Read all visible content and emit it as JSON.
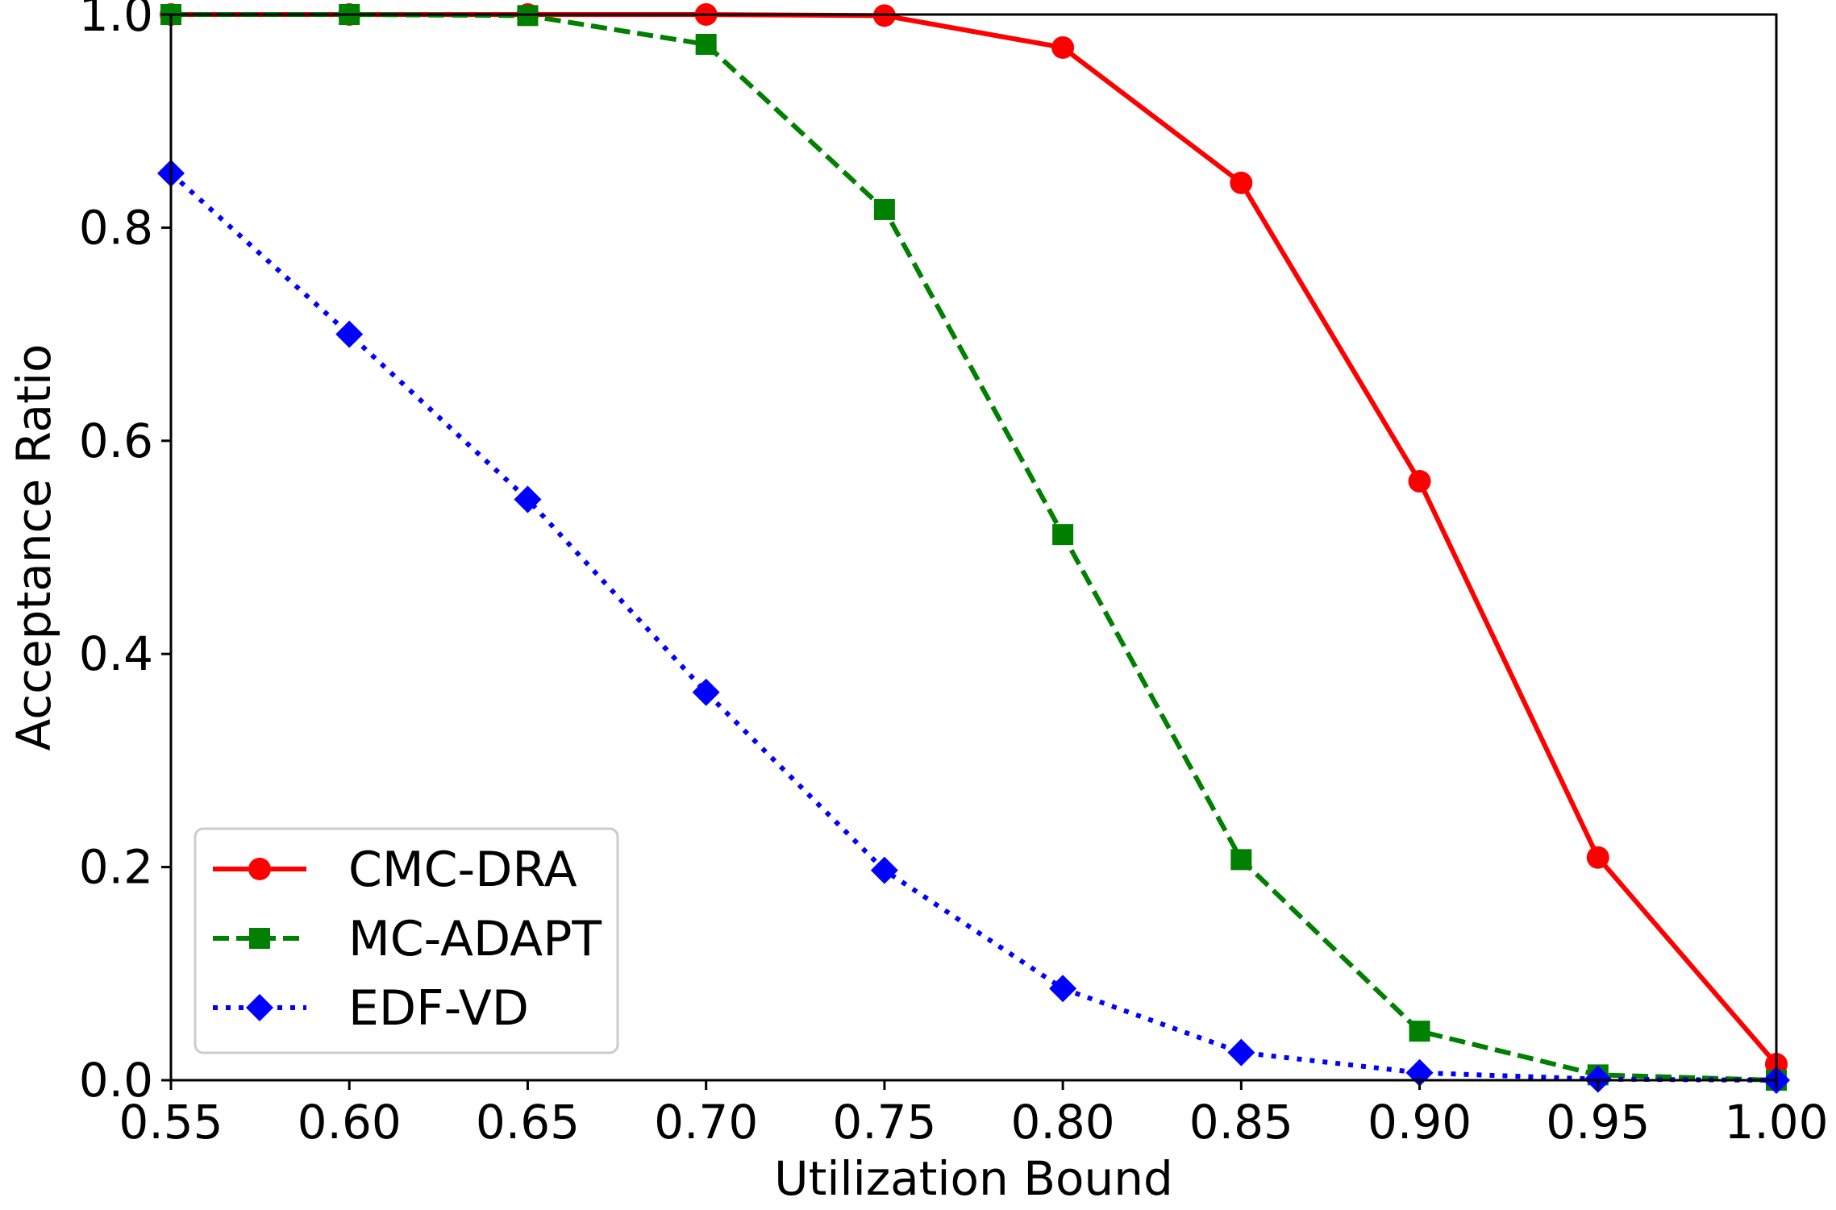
{
  "chart_data": {
    "type": "line",
    "title": "",
    "xlabel": "Utilization Bound",
    "ylabel": "Acceptance Ratio",
    "xlim": [
      0.55,
      1.0
    ],
    "ylim": [
      0.0,
      1.0
    ],
    "grid": false,
    "legend_position": "lower-left",
    "x": [
      0.55,
      0.6,
      0.65,
      0.7,
      0.75,
      0.8,
      0.85,
      0.9,
      0.95,
      1.0
    ],
    "x_tick_labels": [
      "0.55",
      "0.60",
      "0.65",
      "0.70",
      "0.75",
      "0.80",
      "0.85",
      "0.90",
      "0.95",
      "1.00"
    ],
    "y_ticks": [
      0.0,
      0.2,
      0.4,
      0.6,
      0.8,
      1.0
    ],
    "y_tick_labels": [
      "0.0",
      "0.2",
      "0.4",
      "0.6",
      "0.8",
      "1.0"
    ],
    "series": [
      {
        "name": "CMC-DRA",
        "color": "#ff0000",
        "line_style": "solid",
        "marker": "circle",
        "values": [
          1.0,
          1.0,
          1.0,
          1.0,
          0.999,
          0.969,
          0.842,
          0.562,
          0.209,
          0.015
        ]
      },
      {
        "name": "MC-ADAPT",
        "color": "#008000",
        "line_style": "dashed",
        "marker": "square",
        "values": [
          1.0,
          1.0,
          0.999,
          0.972,
          0.817,
          0.512,
          0.207,
          0.046,
          0.005,
          0.0
        ]
      },
      {
        "name": "EDF-VD",
        "color": "#0000ff",
        "line_style": "dotted",
        "marker": "diamond",
        "values": [
          0.851,
          0.7,
          0.545,
          0.364,
          0.197,
          0.086,
          0.026,
          0.007,
          0.001,
          0.0
        ]
      }
    ]
  }
}
